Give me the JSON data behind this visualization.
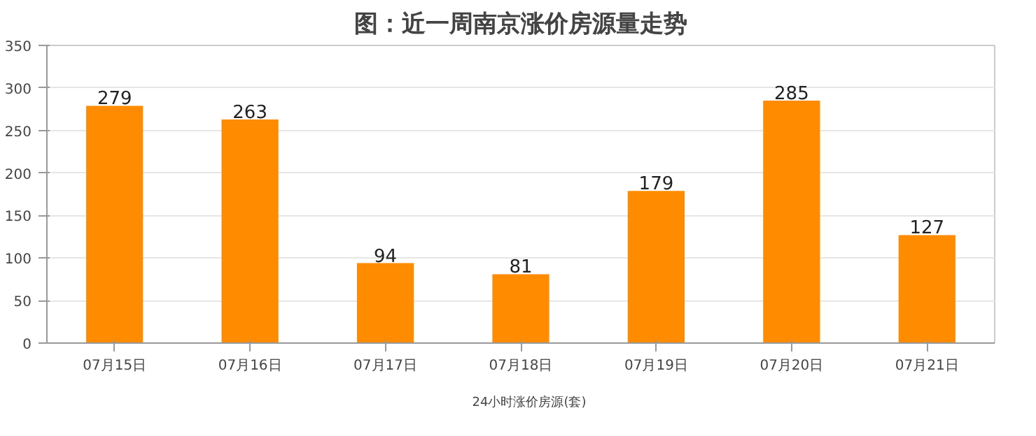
{
  "chart_data": {
    "type": "bar",
    "title": "图：近一周南京涨价房源量走势",
    "categories": [
      "07月15日",
      "07月16日",
      "07月17日",
      "07月18日",
      "07月19日",
      "07月20日",
      "07月21日"
    ],
    "series": [
      {
        "name": "24小时涨价房源(套)",
        "color": "#ff8c00",
        "values": [
          279,
          263,
          94,
          81,
          179,
          285,
          127
        ]
      }
    ],
    "ylim": [
      0,
      350
    ],
    "yticks": [
      0,
      50,
      100,
      150,
      200,
      250,
      300,
      350
    ],
    "grid": "y",
    "legend": "bottom",
    "data_labels": true
  }
}
